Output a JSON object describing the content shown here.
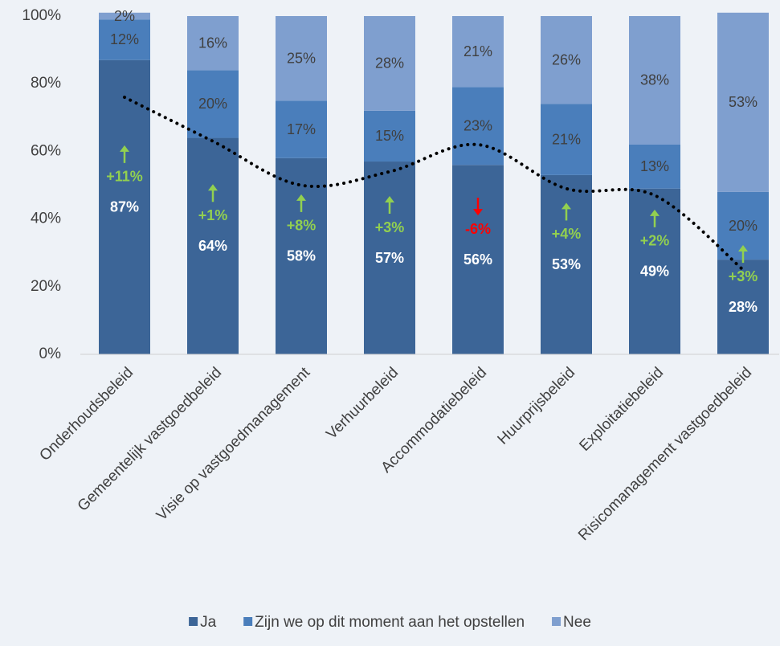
{
  "chart_data": {
    "type": "stacked_bar",
    "categories": [
      "Onderhoudsbeleid",
      "Gemeentelijk vastgoedbeleid",
      "Visie op vastgoedmanagement",
      "Verhuurbeleid",
      "Accommodatiebeleid",
      "Huurprijsbeleid",
      "Exploitatiebeleid",
      "Risicomanagement vastgoedbeleid"
    ],
    "series": [
      {
        "name": "Ja",
        "color": "#3c6597",
        "label_color": "#ffffff",
        "values": [
          87,
          64,
          58,
          57,
          56,
          53,
          49,
          28
        ],
        "value_labels": [
          "87%",
          "64%",
          "58%",
          "57%",
          "56%",
          "53%",
          "49%",
          "28%"
        ]
      },
      {
        "name": "Zijn we op dit moment aan het opstellen",
        "color": "#4a7ebb",
        "label_color": "#404040",
        "values": [
          12,
          20,
          17,
          15,
          23,
          21,
          13,
          20
        ],
        "value_labels": [
          "12%",
          "20%",
          "17%",
          "15%",
          "23%",
          "21%",
          "13%",
          "20%"
        ]
      },
      {
        "name": "Nee",
        "color": "#7f9fcf",
        "label_color": "#404040",
        "values": [
          2,
          16,
          25,
          28,
          21,
          26,
          38,
          53
        ],
        "value_labels": [
          "2%",
          "16%",
          "25%",
          "28%",
          "21%",
          "26%",
          "38%",
          "53%"
        ]
      }
    ],
    "line_values": [
      76,
      63,
      50,
      54,
      62,
      49,
      47,
      25
    ],
    "line_color": "#000000",
    "changes": [
      11,
      1,
      8,
      3,
      -6,
      4,
      2,
      3
    ],
    "change_labels": [
      "+11%",
      "+1%",
      "+8%",
      "+3%",
      "-6%",
      "+4%",
      "+2%",
      "+3%"
    ],
    "up_color": "#92d050",
    "down_color": "#ff0000",
    "ylim": [
      0,
      100
    ],
    "yticks": [
      {
        "value": 0,
        "label": "0%"
      },
      {
        "value": 20,
        "label": "20%"
      },
      {
        "value": 40,
        "label": "40%"
      },
      {
        "value": 60,
        "label": "60%"
      },
      {
        "value": 80,
        "label": "80%"
      },
      {
        "value": 100,
        "label": "100%"
      }
    ],
    "legend": "bottom"
  }
}
